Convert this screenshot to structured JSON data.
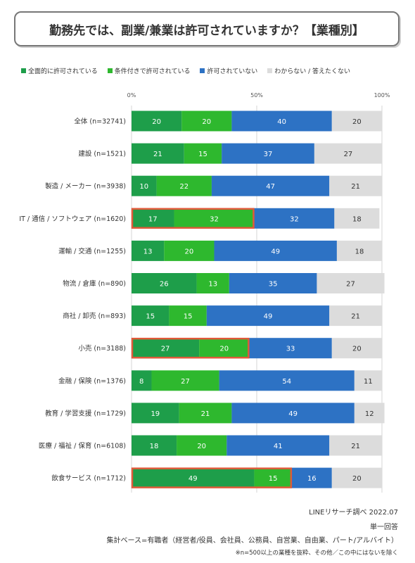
{
  "title": "勤務先では、副業/兼業は許可されていますか？【業種別】",
  "colors": {
    "full": "#1e9e4a",
    "conditional": "#2eb82e",
    "not_permitted": "#2d72c4",
    "unknown": "#dcdcdc",
    "highlight": "#e05a3a"
  },
  "chart_data": {
    "type": "bar",
    "orientation": "horizontal",
    "stacked": true,
    "xlim": [
      0,
      100
    ],
    "x_ticks": [
      "0%",
      "50%",
      "100%"
    ],
    "legend_position": "top",
    "categories": [
      "全体 (n=32741)",
      "建設 (n=1521)",
      "製造 / メーカー (n=3938)",
      "IT / 通信 / ソフトウェア (n=1620)",
      "運輸 / 交通 (n=1255)",
      "物流 / 倉庫 (n=890)",
      "商社 / 卸売 (n=893)",
      "小売 (n=3188)",
      "金融 / 保険 (n=1376)",
      "教育 / 学習支援 (n=1729)",
      "医療 / 福祉 / 保育 (n=6108)",
      "飲食サービス (n=1712)"
    ],
    "series": [
      {
        "name": "全面的に許可されている",
        "color": "#1e9e4a",
        "values": [
          20,
          21,
          10,
          17,
          13,
          26,
          15,
          27,
          8,
          19,
          18,
          49
        ]
      },
      {
        "name": "条件付きで許可されている",
        "color": "#2eb82e",
        "values": [
          20,
          15,
          22,
          32,
          20,
          13,
          15,
          20,
          27,
          21,
          20,
          15
        ]
      },
      {
        "name": "許可されていない",
        "color": "#2d72c4",
        "values": [
          40,
          37,
          47,
          32,
          49,
          35,
          49,
          33,
          54,
          49,
          41,
          16
        ]
      },
      {
        "name": "わからない / 答えたくない",
        "color": "#dcdcdc",
        "values": [
          20,
          27,
          21,
          18,
          18,
          27,
          21,
          20,
          11,
          12,
          21,
          20
        ]
      }
    ],
    "highlighted_categories": [
      3,
      7,
      11
    ]
  },
  "footer": {
    "source": "LINEリサーチ調べ 2022.07",
    "answer_type": "単一回答",
    "base": "集計ベース=有職者（経営者/役員、会社員、公務員、自営業、自由業、パート/アルバイト）",
    "note": "※n=500以上の業種を抜粋、その他／この中にはないを除く"
  }
}
